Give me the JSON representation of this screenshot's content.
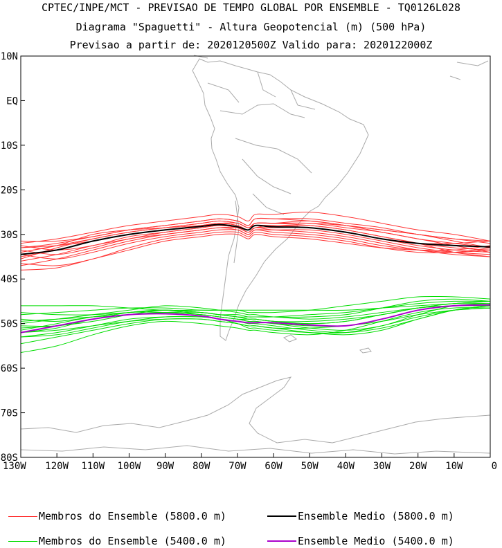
{
  "chart_data": {
    "type": "line",
    "title": "CPTEC/INPE/MCT - PREVISAO DE TEMPO GLOBAL POR ENSEMBLE - TQ0126L028",
    "subtitle": "Diagrama \"Spaguetti\" - Altura Geopotencial (m) (500 hPa)",
    "subtitle2": "Previsao a partir de: 2020120500Z  Valido para: 2020122000Z",
    "xlabel": "",
    "ylabel": "",
    "xlim": [
      -130,
      0
    ],
    "ylim": [
      -80,
      10
    ],
    "x_ticks": [
      -130,
      -120,
      -110,
      -100,
      -90,
      -80,
      -70,
      -60,
      -50,
      -40,
      -30,
      -20,
      -10,
      0
    ],
    "x_tick_labels": [
      "130W",
      "120W",
      "110W",
      "100W",
      "90W",
      "80W",
      "70W",
      "60W",
      "50W",
      "40W",
      "30W",
      "20W",
      "10W",
      "0"
    ],
    "y_ticks": [
      10,
      0,
      -10,
      -20,
      -30,
      -40,
      -50,
      -60,
      -70,
      -80
    ],
    "y_tick_labels": [
      "10N",
      "EQ",
      "10S",
      "20S",
      "30S",
      "40S",
      "50S",
      "60S",
      "70S",
      "80S"
    ],
    "x": [
      -130,
      -120,
      -110,
      -100,
      -90,
      -80,
      -75,
      -70,
      -67,
      -65,
      -60,
      -50,
      -40,
      -30,
      -20,
      -10,
      0
    ],
    "series_groups": [
      {
        "name": "Membros do Ensemble (5800.0 m)",
        "color": "#ff3333",
        "members": [
          [
            -32,
            -31,
            -29.5,
            -28,
            -27,
            -26,
            -25.5,
            -26,
            -27,
            -25.5,
            -25.5,
            -25,
            -26,
            -27.5,
            -29,
            -30,
            -31.5
          ],
          [
            -33,
            -32,
            -30.5,
            -29,
            -28,
            -27,
            -26.5,
            -27,
            -28,
            -26.5,
            -26.5,
            -26.5,
            -27.5,
            -28.5,
            -30,
            -31,
            -32
          ],
          [
            -34,
            -32.5,
            -31,
            -29.5,
            -28.5,
            -27.5,
            -27,
            -27.5,
            -28.5,
            -27.5,
            -27.5,
            -27.5,
            -28.5,
            -29.5,
            -31,
            -32,
            -33
          ],
          [
            -35,
            -33.5,
            -31.5,
            -30,
            -29,
            -28,
            -27.5,
            -28,
            -29,
            -28,
            -28,
            -28,
            -29,
            -30.5,
            -32,
            -33,
            -33.5
          ],
          [
            -36,
            -34.5,
            -32.5,
            -31,
            -29.5,
            -28.5,
            -28,
            -28.5,
            -29.5,
            -28.5,
            -28.5,
            -28.5,
            -29.5,
            -31,
            -32.5,
            -33.5,
            -34
          ],
          [
            -37,
            -35.5,
            -33.5,
            -31.5,
            -30,
            -29,
            -28.5,
            -29,
            -30,
            -29,
            -29,
            -29,
            -30,
            -31.5,
            -33,
            -34,
            -34.5
          ],
          [
            -33.5,
            -34.5,
            -33,
            -31,
            -30,
            -29,
            -28.5,
            -28.5,
            -29.5,
            -28.5,
            -29,
            -29.5,
            -30.5,
            -32,
            -33.5,
            -34.5,
            -35
          ],
          [
            -34.5,
            -35.5,
            -34,
            -32,
            -30.5,
            -29.5,
            -29,
            -29,
            -30,
            -29,
            -29.5,
            -30,
            -31,
            -32.5,
            -33.5,
            -34,
            -33.5
          ],
          [
            -36.5,
            -37,
            -35.5,
            -33,
            -31,
            -30,
            -29.5,
            -29.5,
            -30.5,
            -29.5,
            -30,
            -30.5,
            -31.5,
            -33,
            -34,
            -34,
            -33
          ],
          [
            -38,
            -37.5,
            -35.5,
            -33.5,
            -31.5,
            -30.5,
            -30,
            -30,
            -31,
            -30,
            -30.5,
            -31,
            -32,
            -33,
            -33.5,
            -33.5,
            -32.5
          ],
          [
            -34,
            -32.5,
            -30,
            -29,
            -28.5,
            -28,
            -27.5,
            -27.5,
            -28.5,
            -27.5,
            -27.5,
            -28,
            -29,
            -30.5,
            -32,
            -34,
            -35
          ],
          [
            -35.5,
            -33,
            -31,
            -29.5,
            -28.5,
            -27.5,
            -27,
            -27.5,
            -28.5,
            -27.5,
            -27.5,
            -27,
            -28,
            -29,
            -30,
            -31,
            -31.5
          ],
          [
            -33,
            -32.5,
            -31.5,
            -30,
            -29,
            -28,
            -27.5,
            -28,
            -29,
            -27.5,
            -27.5,
            -27.5,
            -28,
            -29,
            -30,
            -31.5,
            -33
          ],
          [
            -31.5,
            -31.5,
            -30.5,
            -29,
            -28,
            -27,
            -26.5,
            -27,
            -28,
            -26.5,
            -26.5,
            -27,
            -28,
            -29.5,
            -31,
            -32.5,
            -34
          ],
          [
            -32.5,
            -33.5,
            -32.5,
            -30.5,
            -29.5,
            -28.5,
            -28,
            -28.5,
            -29.5,
            -28.5,
            -28,
            -28.5,
            -29.5,
            -31,
            -32,
            -32,
            -31.5
          ]
        ]
      },
      {
        "name": "Membros do Ensemble (5400.0 m)",
        "color": "#00dd00",
        "members": [
          [
            -46,
            -46,
            -46,
            -46.5,
            -47,
            -47,
            -47,
            -47,
            -47,
            -47,
            -47,
            -47,
            -47,
            -46.5,
            -46,
            -45.5,
            -45
          ],
          [
            -48,
            -47.5,
            -47,
            -46.5,
            -46.5,
            -47,
            -47,
            -47,
            -47.5,
            -47.5,
            -47.5,
            -47,
            -46,
            -45,
            -44,
            -44,
            -44.5
          ],
          [
            -50,
            -49,
            -48,
            -47,
            -46,
            -46.5,
            -47,
            -47.5,
            -48,
            -48,
            -48.5,
            -48.5,
            -48,
            -46.5,
            -45,
            -44.5,
            -45
          ],
          [
            -51,
            -50.5,
            -49.5,
            -48,
            -47,
            -47.5,
            -48,
            -48.5,
            -49,
            -49,
            -49.5,
            -50,
            -49.5,
            -48,
            -46.5,
            -45.5,
            -45.5
          ],
          [
            -52,
            -51,
            -49,
            -48,
            -47.5,
            -48,
            -48.5,
            -49,
            -49.5,
            -49.5,
            -50,
            -51,
            -51.5,
            -50.5,
            -48,
            -46,
            -45.5
          ],
          [
            -53,
            -52,
            -50.5,
            -49,
            -48.5,
            -48.5,
            -49,
            -49.5,
            -50,
            -50,
            -50.5,
            -51.5,
            -52,
            -51,
            -49,
            -47,
            -46
          ],
          [
            -54.5,
            -53,
            -51.5,
            -50,
            -49,
            -49,
            -49.5,
            -50,
            -50.5,
            -50.5,
            -51,
            -52,
            -52.5,
            -51.5,
            -49,
            -47,
            -46
          ],
          [
            -56.5,
            -55,
            -52.5,
            -50.5,
            -49.5,
            -50,
            -50.5,
            -51,
            -51.5,
            -51.5,
            -52,
            -52.5,
            -51.5,
            -49.5,
            -47.5,
            -46.5,
            -46.5
          ],
          [
            -50.5,
            -50.5,
            -49,
            -47.5,
            -47,
            -48,
            -48.5,
            -49,
            -49.5,
            -49.5,
            -50,
            -50.5,
            -50.5,
            -49,
            -47,
            -46,
            -46
          ],
          [
            -49,
            -49.5,
            -48.5,
            -47.5,
            -47.5,
            -48,
            -48.5,
            -49,
            -49,
            -49,
            -49.5,
            -50,
            -49.5,
            -48,
            -46.5,
            -46,
            -46
          ],
          [
            -47.5,
            -48,
            -48,
            -47.5,
            -47,
            -47.5,
            -48,
            -48,
            -48.5,
            -48.5,
            -48.5,
            -49,
            -48.5,
            -47.5,
            -46.5,
            -46,
            -46
          ],
          [
            -53,
            -52.5,
            -51,
            -49.5,
            -48.5,
            -48.5,
            -49,
            -50,
            -51,
            -51,
            -51.5,
            -52,
            -52,
            -50.5,
            -48.5,
            -47,
            -46.5
          ],
          [
            -52,
            -51.5,
            -50.5,
            -49.5,
            -49,
            -49,
            -49.5,
            -50,
            -50.5,
            -50.5,
            -51,
            -51,
            -50.5,
            -49.5,
            -48,
            -47,
            -46.5
          ],
          [
            -49.5,
            -49,
            -48.5,
            -48,
            -47.5,
            -47.5,
            -48,
            -48.5,
            -48.5,
            -48.5,
            -48.5,
            -48,
            -47.5,
            -46.5,
            -45.5,
            -45,
            -45
          ],
          [
            -51.5,
            -50,
            -48.5,
            -47.5,
            -47,
            -47.5,
            -48,
            -48.5,
            -49,
            -49,
            -49.5,
            -49.5,
            -49,
            -48,
            -46.5,
            -45.5,
            -45
          ]
        ]
      }
    ],
    "series": [
      {
        "name": "Ensemble Medio (5800.0 m)",
        "color": "#000000",
        "values": [
          -34.5,
          -33.5,
          -31.5,
          -30,
          -29,
          -28.2,
          -27.8,
          -28.3,
          -29,
          -28,
          -28.3,
          -28.5,
          -29.5,
          -31,
          -32,
          -32.5,
          -32.8
        ]
      },
      {
        "name": "Ensemble Medio (5400.0 m)",
        "color": "#aa00cc",
        "values": [
          -52,
          -50.5,
          -49,
          -48,
          -47.8,
          -48.3,
          -49,
          -49.5,
          -49.8,
          -49.8,
          -49.8,
          -50.3,
          -50.5,
          -49,
          -47,
          -46,
          -45.8
        ]
      }
    ],
    "legend": [
      {
        "label": "Membros do Ensemble (5800.0 m)",
        "color": "#ff3333"
      },
      {
        "label": "Ensemble Medio (5800.0 m)",
        "color": "#000000"
      },
      {
        "label": "Membros do Ensemble (5400.0 m)",
        "color": "#00dd00"
      },
      {
        "label": "Ensemble Medio (5400.0 m)",
        "color": "#aa00cc"
      }
    ],
    "legend_position": "bottom",
    "map_coastline_color": "#aaaaaa",
    "grid": false
  }
}
